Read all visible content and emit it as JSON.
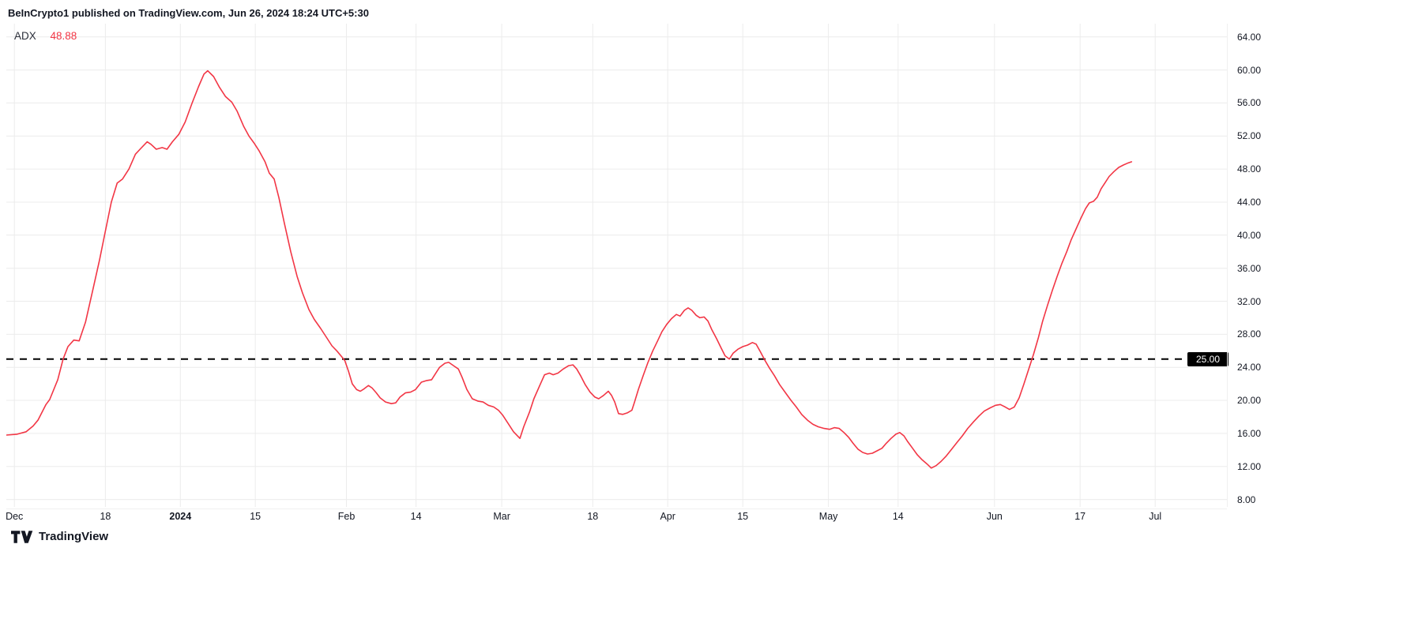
{
  "header": {
    "attribution": "BeInCrypto1 published on TradingView.com, Jun 26, 2024 18:24 UTC+5:30"
  },
  "legend": {
    "indicator": "ADX",
    "value": "48.88",
    "value_color": "#f23645"
  },
  "footer": {
    "brand": "TradingView"
  },
  "colors": {
    "line": "#f23645",
    "grid": "#ececec",
    "axis_text": "#131722",
    "threshold": "#000000",
    "badge_bg": "#000000",
    "badge_text": "#ffffff"
  },
  "chart_data": {
    "type": "line",
    "title": "ADX",
    "legend_entries": [
      "ADX"
    ],
    "grid": true,
    "threshold": {
      "value": 25,
      "label": "25.00",
      "style": "dashed",
      "color": "#000000"
    },
    "y_axis": {
      "ticks": [
        64,
        60,
        56,
        52,
        48,
        44,
        40,
        36,
        32,
        28,
        24,
        20,
        16,
        12,
        8
      ],
      "value_at_top": 65.6,
      "value_at_bottom": 7.1,
      "tick_format": "0.00"
    },
    "x_axis": {
      "epoch": "days since Dec 1",
      "start_day": -1.5,
      "end_day": 226.4,
      "ticks": [
        {
          "label": "Dec",
          "day": 0,
          "bold": false
        },
        {
          "label": "18",
          "day": 17,
          "bold": false
        },
        {
          "label": "2024",
          "day": 31,
          "bold": true
        },
        {
          "label": "15",
          "day": 45,
          "bold": false
        },
        {
          "label": "Feb",
          "day": 62,
          "bold": false
        },
        {
          "label": "14",
          "day": 75,
          "bold": false
        },
        {
          "label": "Mar",
          "day": 91,
          "bold": false
        },
        {
          "label": "18",
          "day": 108,
          "bold": false
        },
        {
          "label": "Apr",
          "day": 122,
          "bold": false
        },
        {
          "label": "15",
          "day": 136,
          "bold": false
        },
        {
          "label": "May",
          "day": 152,
          "bold": false
        },
        {
          "label": "14",
          "day": 165,
          "bold": false
        },
        {
          "label": "Jun",
          "day": 183,
          "bold": false
        },
        {
          "label": "17",
          "day": 199,
          "bold": false
        },
        {
          "label": "Jul",
          "day": 213,
          "bold": false
        }
      ]
    },
    "series": [
      {
        "name": "ADX",
        "color": "#f23645",
        "last_value": 48.88,
        "points": [
          [
            -1.5,
            15.8
          ],
          [
            0.5,
            15.9
          ],
          [
            2.2,
            16.2
          ],
          [
            3.5,
            16.9
          ],
          [
            4.4,
            17.6
          ],
          [
            5.9,
            19.5
          ],
          [
            6.6,
            20.1
          ],
          [
            8.1,
            22.5
          ],
          [
            9.1,
            25.0
          ],
          [
            10,
            26.5
          ],
          [
            11.1,
            27.3
          ],
          [
            12.1,
            27.2
          ],
          [
            13.3,
            29.5
          ],
          [
            14.7,
            33.5
          ],
          [
            15.9,
            37.0
          ],
          [
            17,
            40.5
          ],
          [
            18.1,
            44.0
          ],
          [
            19.2,
            46.3
          ],
          [
            20.2,
            46.8
          ],
          [
            21.4,
            48.0
          ],
          [
            22.6,
            49.8
          ],
          [
            23.6,
            50.5
          ],
          [
            24.8,
            51.3
          ],
          [
            25.5,
            51.0
          ],
          [
            26.5,
            50.4
          ],
          [
            27.6,
            50.6
          ],
          [
            28.5,
            50.4
          ],
          [
            29.5,
            51.3
          ],
          [
            30.7,
            52.2
          ],
          [
            31.9,
            53.7
          ],
          [
            33.2,
            56.0
          ],
          [
            34.4,
            58.0
          ],
          [
            35.4,
            59.5
          ],
          [
            36.1,
            59.9
          ],
          [
            37.2,
            59.2
          ],
          [
            38.3,
            57.9
          ],
          [
            39.4,
            56.8
          ],
          [
            40.6,
            56.1
          ],
          [
            41.6,
            55.0
          ],
          [
            42.8,
            53.2
          ],
          [
            43.8,
            52.0
          ],
          [
            44.7,
            51.2
          ],
          [
            45.7,
            50.2
          ],
          [
            46.8,
            48.9
          ],
          [
            47.6,
            47.5
          ],
          [
            48.5,
            46.8
          ],
          [
            49.4,
            44.5
          ],
          [
            50.4,
            41.5
          ],
          [
            51.6,
            38.0
          ],
          [
            52.8,
            35.0
          ],
          [
            53.8,
            33.0
          ],
          [
            55,
            31.0
          ],
          [
            56,
            29.8
          ],
          [
            57.2,
            28.7
          ],
          [
            58.3,
            27.6
          ],
          [
            59.3,
            26.6
          ],
          [
            60.2,
            26.0
          ],
          [
            61.1,
            25.3
          ],
          [
            61.7,
            24.8
          ],
          [
            62.4,
            23.5
          ],
          [
            63.1,
            22.0
          ],
          [
            63.9,
            21.3
          ],
          [
            64.6,
            21.1
          ],
          [
            65.3,
            21.4
          ],
          [
            66.1,
            21.8
          ],
          [
            66.8,
            21.5
          ],
          [
            67.6,
            20.9
          ],
          [
            68.3,
            20.3
          ],
          [
            69.3,
            19.8
          ],
          [
            70.4,
            19.6
          ],
          [
            71.2,
            19.7
          ],
          [
            72,
            20.4
          ],
          [
            73,
            20.9
          ],
          [
            74,
            21.0
          ],
          [
            74.9,
            21.3
          ],
          [
            76,
            22.2
          ],
          [
            77,
            22.4
          ],
          [
            77.9,
            22.5
          ],
          [
            78.6,
            23.2
          ],
          [
            79.4,
            24.0
          ],
          [
            80.4,
            24.5
          ],
          [
            81.1,
            24.6
          ],
          [
            82,
            24.2
          ],
          [
            82.9,
            23.8
          ],
          [
            83.6,
            22.8
          ],
          [
            84.5,
            21.3
          ],
          [
            85.5,
            20.2
          ],
          [
            86.6,
            19.9
          ],
          [
            87.5,
            19.8
          ],
          [
            88.5,
            19.4
          ],
          [
            89.5,
            19.2
          ],
          [
            90.4,
            18.8
          ],
          [
            91.2,
            18.2
          ],
          [
            92.2,
            17.2
          ],
          [
            93.2,
            16.2
          ],
          [
            94.4,
            15.4
          ],
          [
            95.1,
            16.8
          ],
          [
            96.2,
            18.6
          ],
          [
            97,
            20.2
          ],
          [
            98.1,
            21.8
          ],
          [
            99,
            23.1
          ],
          [
            99.9,
            23.3
          ],
          [
            100.6,
            23.1
          ],
          [
            101.5,
            23.3
          ],
          [
            102.5,
            23.8
          ],
          [
            103.5,
            24.2
          ],
          [
            104.3,
            24.3
          ],
          [
            105,
            23.8
          ],
          [
            105.8,
            22.9
          ],
          [
            106.6,
            21.9
          ],
          [
            107.5,
            21.0
          ],
          [
            108.4,
            20.4
          ],
          [
            109.1,
            20.2
          ],
          [
            110,
            20.6
          ],
          [
            110.9,
            21.1
          ],
          [
            111.5,
            20.6
          ],
          [
            112.1,
            19.8
          ],
          [
            112.8,
            18.4
          ],
          [
            113.6,
            18.3
          ],
          [
            114.5,
            18.5
          ],
          [
            115.3,
            18.8
          ],
          [
            115.8,
            19.8
          ],
          [
            116.5,
            21.3
          ],
          [
            117.4,
            23.0
          ],
          [
            118.3,
            24.6
          ],
          [
            119.2,
            26.0
          ],
          [
            120.1,
            27.2
          ],
          [
            120.9,
            28.3
          ],
          [
            121.8,
            29.2
          ],
          [
            122.7,
            29.9
          ],
          [
            123.6,
            30.4
          ],
          [
            124.3,
            30.2
          ],
          [
            125.1,
            30.9
          ],
          [
            125.8,
            31.2
          ],
          [
            126.5,
            30.9
          ],
          [
            127.3,
            30.3
          ],
          [
            128,
            30.0
          ],
          [
            128.8,
            30.1
          ],
          [
            129.5,
            29.6
          ],
          [
            130.2,
            28.6
          ],
          [
            131.1,
            27.5
          ],
          [
            132,
            26.3
          ],
          [
            132.7,
            25.4
          ],
          [
            133.5,
            25.0
          ],
          [
            134.2,
            25.7
          ],
          [
            135.1,
            26.2
          ],
          [
            136,
            26.5
          ],
          [
            136.9,
            26.7
          ],
          [
            137.8,
            27.0
          ],
          [
            138.5,
            26.8
          ],
          [
            139.2,
            26.0
          ],
          [
            140.1,
            24.9
          ],
          [
            141,
            23.9
          ],
          [
            141.9,
            23.0
          ],
          [
            142.9,
            21.9
          ],
          [
            144,
            20.9
          ],
          [
            145,
            20.0
          ],
          [
            146,
            19.2
          ],
          [
            147,
            18.3
          ],
          [
            148.1,
            17.6
          ],
          [
            149.1,
            17.1
          ],
          [
            150.1,
            16.8
          ],
          [
            151.2,
            16.6
          ],
          [
            152.2,
            16.5
          ],
          [
            153.1,
            16.7
          ],
          [
            154,
            16.6
          ],
          [
            154.9,
            16.1
          ],
          [
            155.8,
            15.5
          ],
          [
            156.6,
            14.8
          ],
          [
            157.5,
            14.1
          ],
          [
            158.4,
            13.7
          ],
          [
            159.3,
            13.5
          ],
          [
            160.2,
            13.6
          ],
          [
            161.1,
            13.9
          ],
          [
            162,
            14.2
          ],
          [
            162.8,
            14.8
          ],
          [
            163.7,
            15.4
          ],
          [
            164.6,
            15.9
          ],
          [
            165.3,
            16.1
          ],
          [
            166.1,
            15.7
          ],
          [
            166.8,
            15.0
          ],
          [
            167.7,
            14.2
          ],
          [
            168.6,
            13.4
          ],
          [
            169.5,
            12.8
          ],
          [
            170.4,
            12.3
          ],
          [
            171.2,
            11.8
          ],
          [
            172.1,
            12.1
          ],
          [
            173,
            12.6
          ],
          [
            173.9,
            13.2
          ],
          [
            174.9,
            14.0
          ],
          [
            176,
            14.9
          ],
          [
            177,
            15.7
          ],
          [
            178,
            16.6
          ],
          [
            179.1,
            17.4
          ],
          [
            180.1,
            18.1
          ],
          [
            181.1,
            18.7
          ],
          [
            182.2,
            19.1
          ],
          [
            183.2,
            19.4
          ],
          [
            184.1,
            19.5
          ],
          [
            185,
            19.2
          ],
          [
            185.8,
            18.9
          ],
          [
            186.7,
            19.2
          ],
          [
            187.6,
            20.3
          ],
          [
            188.5,
            22.0
          ],
          [
            189.4,
            23.8
          ],
          [
            190.3,
            25.6
          ],
          [
            191.2,
            27.6
          ],
          [
            192,
            29.6
          ],
          [
            192.9,
            31.5
          ],
          [
            193.8,
            33.3
          ],
          [
            194.7,
            35.0
          ],
          [
            195.6,
            36.6
          ],
          [
            196.5,
            38.0
          ],
          [
            197.3,
            39.4
          ],
          [
            198.2,
            40.7
          ],
          [
            199.1,
            42.0
          ],
          [
            200,
            43.2
          ],
          [
            200.7,
            43.9
          ],
          [
            201.5,
            44.1
          ],
          [
            202.2,
            44.6
          ],
          [
            202.9,
            45.6
          ],
          [
            203.7,
            46.4
          ],
          [
            204.4,
            47.1
          ],
          [
            205.3,
            47.7
          ],
          [
            206.2,
            48.2
          ],
          [
            207.1,
            48.5
          ],
          [
            207.8,
            48.7
          ],
          [
            208.6,
            48.88
          ]
        ]
      }
    ]
  }
}
